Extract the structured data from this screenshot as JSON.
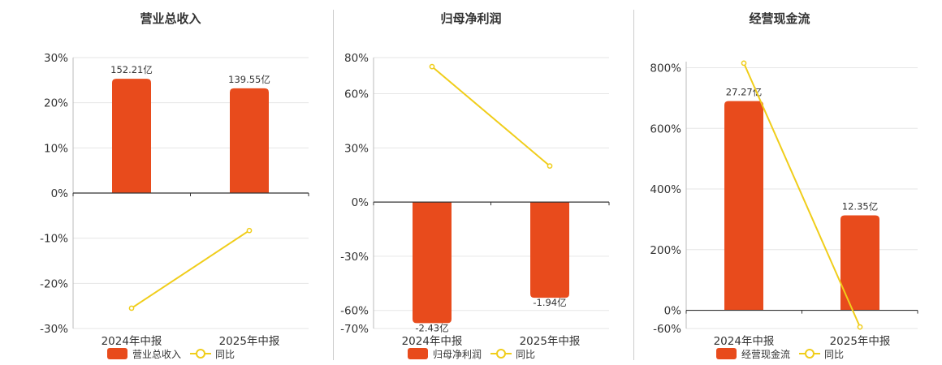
{
  "colors": {
    "bar": "#e84b1c",
    "line": "#f0cd1a",
    "grid": "#e6e6e6",
    "axis": "#333333"
  },
  "chart_data": [
    {
      "type": "bar",
      "title": "营业总收入",
      "categories": [
        "2024年中报",
        "2025年中报"
      ],
      "ylim": [
        -30,
        30
      ],
      "yticks": [
        -30,
        -20,
        -10,
        0,
        10,
        20,
        30
      ],
      "series": [
        {
          "name": "营业总收入",
          "type": "bar",
          "values": [
            25.3,
            23.2
          ],
          "labels": [
            "152.21亿",
            "139.55亿"
          ]
        },
        {
          "name": "同比",
          "type": "line",
          "values": [
            -25.5,
            -8.3
          ]
        }
      ],
      "grid": true,
      "legend": "bottom"
    },
    {
      "type": "bar",
      "title": "归母净利润",
      "categories": [
        "2024年中报",
        "2025年中报"
      ],
      "ylim": [
        -70,
        80
      ],
      "yticks": [
        -70,
        -60,
        -30,
        0,
        30,
        60,
        80
      ],
      "series": [
        {
          "name": "归母净利润",
          "type": "bar",
          "values": [
            -67,
            -53
          ],
          "labels": [
            "-2.43亿",
            "-1.94亿"
          ]
        },
        {
          "name": "同比",
          "type": "line",
          "values": [
            75,
            20
          ]
        }
      ],
      "grid": true,
      "legend": "bottom"
    },
    {
      "type": "bar",
      "title": "经营现金流",
      "categories": [
        "2024年中报",
        "2025年中报"
      ],
      "ylim": [
        -60,
        820
      ],
      "yticks": [
        -60,
        0,
        200,
        400,
        600,
        800
      ],
      "series": [
        {
          "name": "经营现金流",
          "type": "bar",
          "values": [
            690,
            313
          ],
          "labels": [
            "27.27亿",
            "12.35亿"
          ]
        },
        {
          "name": "同比",
          "type": "line",
          "values": [
            815,
            -55
          ]
        }
      ],
      "grid": true,
      "legend": "bottom"
    }
  ]
}
